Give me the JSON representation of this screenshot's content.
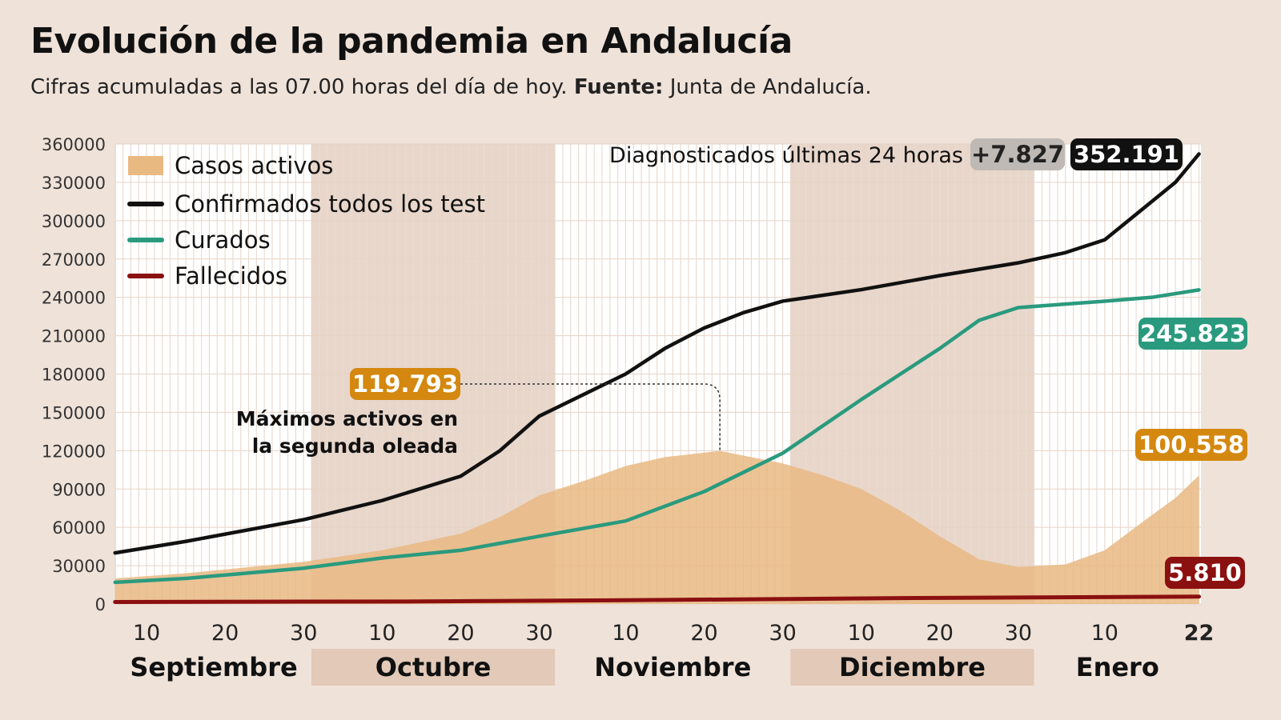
{
  "title": "Evolución de la pandemia en Andalucía",
  "subtitle": {
    "text": "Cifras acumuladas a las 07.00 horas del día de hoy.",
    "source_label": "Fuente:",
    "source": "Junta de Andalucía."
  },
  "colors": {
    "background": "#efe2d9",
    "band": "#e8d6ca",
    "activos": "#e9b982",
    "confirmados": "#111111",
    "curados": "#2a9a7e",
    "fallecidos": "#8b1010",
    "activos_label": "#d4880f"
  },
  "chart_data": {
    "type": "line",
    "title": "Evolución de la pandemia en Andalucía",
    "ylim": [
      0,
      360000
    ],
    "y_ticks": [
      "0",
      "30000",
      "60000",
      "90000",
      "120000",
      "150000",
      "180000",
      "210000",
      "240000",
      "270000",
      "300000",
      "330000",
      "360000"
    ],
    "y_tick_values": [
      0,
      30000,
      60000,
      90000,
      120000,
      150000,
      180000,
      210000,
      240000,
      270000,
      300000,
      330000,
      360000
    ],
    "x_ticks": [
      {
        "date": "2020-09-10",
        "label": "10"
      },
      {
        "date": "2020-09-20",
        "label": "20"
      },
      {
        "date": "2020-09-30",
        "label": "30"
      },
      {
        "date": "2020-10-10",
        "label": "10"
      },
      {
        "date": "2020-10-20",
        "label": "20"
      },
      {
        "date": "2020-10-30",
        "label": "30"
      },
      {
        "date": "2020-11-10",
        "label": "10"
      },
      {
        "date": "2020-11-20",
        "label": "20"
      },
      {
        "date": "2020-11-30",
        "label": "30"
      },
      {
        "date": "2020-12-10",
        "label": "10"
      },
      {
        "date": "2020-12-20",
        "label": "20"
      },
      {
        "date": "2020-12-30",
        "label": "30"
      },
      {
        "date": "2021-01-10",
        "label": "10"
      },
      {
        "date": "2021-01-22",
        "label": "22"
      }
    ],
    "months": [
      {
        "label": "Septiembre",
        "start": "2020-09-01",
        "end": "2020-09-30",
        "shaded": false
      },
      {
        "label": "Octubre",
        "start": "2020-10-01",
        "end": "2020-10-31",
        "shaded": true
      },
      {
        "label": "Noviembre",
        "start": "2020-11-01",
        "end": "2020-11-30",
        "shaded": false
      },
      {
        "label": "Diciembre",
        "start": "2020-12-01",
        "end": "2020-12-31",
        "shaded": true
      },
      {
        "label": "Enero",
        "start": "2021-01-01",
        "end": "2021-01-22",
        "shaded": false
      }
    ],
    "x_range": [
      "2020-09-06",
      "2021-01-22"
    ],
    "grid": true,
    "legend_placement": "top-left",
    "series": [
      {
        "name": "Casos activos",
        "type": "area",
        "color": "#e9b982",
        "points": [
          [
            "2020-09-06",
            20000
          ],
          [
            "2020-09-15",
            24000
          ],
          [
            "2020-09-30",
            33000
          ],
          [
            "2020-10-10",
            42000
          ],
          [
            "2020-10-20",
            55000
          ],
          [
            "2020-10-25",
            68000
          ],
          [
            "2020-10-30",
            85000
          ],
          [
            "2020-11-05",
            97000
          ],
          [
            "2020-11-10",
            108000
          ],
          [
            "2020-11-15",
            115000
          ],
          [
            "2020-11-22",
            119793
          ],
          [
            "2020-11-30",
            110000
          ],
          [
            "2020-12-05",
            101000
          ],
          [
            "2020-12-10",
            90000
          ],
          [
            "2020-12-15",
            73000
          ],
          [
            "2020-12-20",
            53000
          ],
          [
            "2020-12-25",
            35000
          ],
          [
            "2020-12-30",
            29000
          ],
          [
            "2021-01-05",
            31000
          ],
          [
            "2021-01-10",
            42000
          ],
          [
            "2021-01-15",
            65000
          ],
          [
            "2021-01-19",
            83000
          ],
          [
            "2021-01-22",
            100558
          ]
        ]
      },
      {
        "name": "Confirmados todos los test",
        "type": "line",
        "color": "#111111",
        "points": [
          [
            "2020-09-06",
            40000
          ],
          [
            "2020-09-15",
            49000
          ],
          [
            "2020-09-30",
            66000
          ],
          [
            "2020-10-10",
            81000
          ],
          [
            "2020-10-20",
            100000
          ],
          [
            "2020-10-25",
            120000
          ],
          [
            "2020-10-30",
            147000
          ],
          [
            "2020-11-05",
            165000
          ],
          [
            "2020-11-10",
            180000
          ],
          [
            "2020-11-15",
            200000
          ],
          [
            "2020-11-20",
            216000
          ],
          [
            "2020-11-25",
            228000
          ],
          [
            "2020-11-30",
            237000
          ],
          [
            "2020-12-10",
            246000
          ],
          [
            "2020-12-20",
            257000
          ],
          [
            "2020-12-30",
            267000
          ],
          [
            "2021-01-05",
            275000
          ],
          [
            "2021-01-10",
            285000
          ],
          [
            "2021-01-15",
            310000
          ],
          [
            "2021-01-19",
            330000
          ],
          [
            "2021-01-22",
            352191
          ]
        ]
      },
      {
        "name": "Curados",
        "type": "line",
        "color": "#2a9a7e",
        "points": [
          [
            "2020-09-06",
            17000
          ],
          [
            "2020-09-15",
            20000
          ],
          [
            "2020-09-30",
            28000
          ],
          [
            "2020-10-10",
            36000
          ],
          [
            "2020-10-20",
            42000
          ],
          [
            "2020-10-30",
            53000
          ],
          [
            "2020-11-10",
            65000
          ],
          [
            "2020-11-20",
            88000
          ],
          [
            "2020-11-30",
            118000
          ],
          [
            "2020-12-10",
            160000
          ],
          [
            "2020-12-20",
            200000
          ],
          [
            "2020-12-25",
            222000
          ],
          [
            "2020-12-30",
            232000
          ],
          [
            "2021-01-10",
            237000
          ],
          [
            "2021-01-16",
            240000
          ],
          [
            "2021-01-22",
            245823
          ]
        ]
      },
      {
        "name": "Fallecidos",
        "type": "line",
        "color": "#8b1010",
        "points": [
          [
            "2020-09-06",
            1600
          ],
          [
            "2020-10-15",
            2000
          ],
          [
            "2020-11-15",
            3200
          ],
          [
            "2020-12-15",
            4600
          ],
          [
            "2021-01-22",
            5810
          ]
        ]
      }
    ],
    "labels": {
      "confirmados_last": "352.191",
      "curados_last": "245.823",
      "activos_last": "100.558",
      "fallecidos_last": "5.810",
      "activos_max": "119.793",
      "activos_max_date": "2020-11-22",
      "max_note_line1": "Máximos activos en",
      "max_note_line2": "la segunda oleada",
      "diag_text": "Diagnosticados últimas 24 horas",
      "diag_value": "+7.827"
    }
  }
}
